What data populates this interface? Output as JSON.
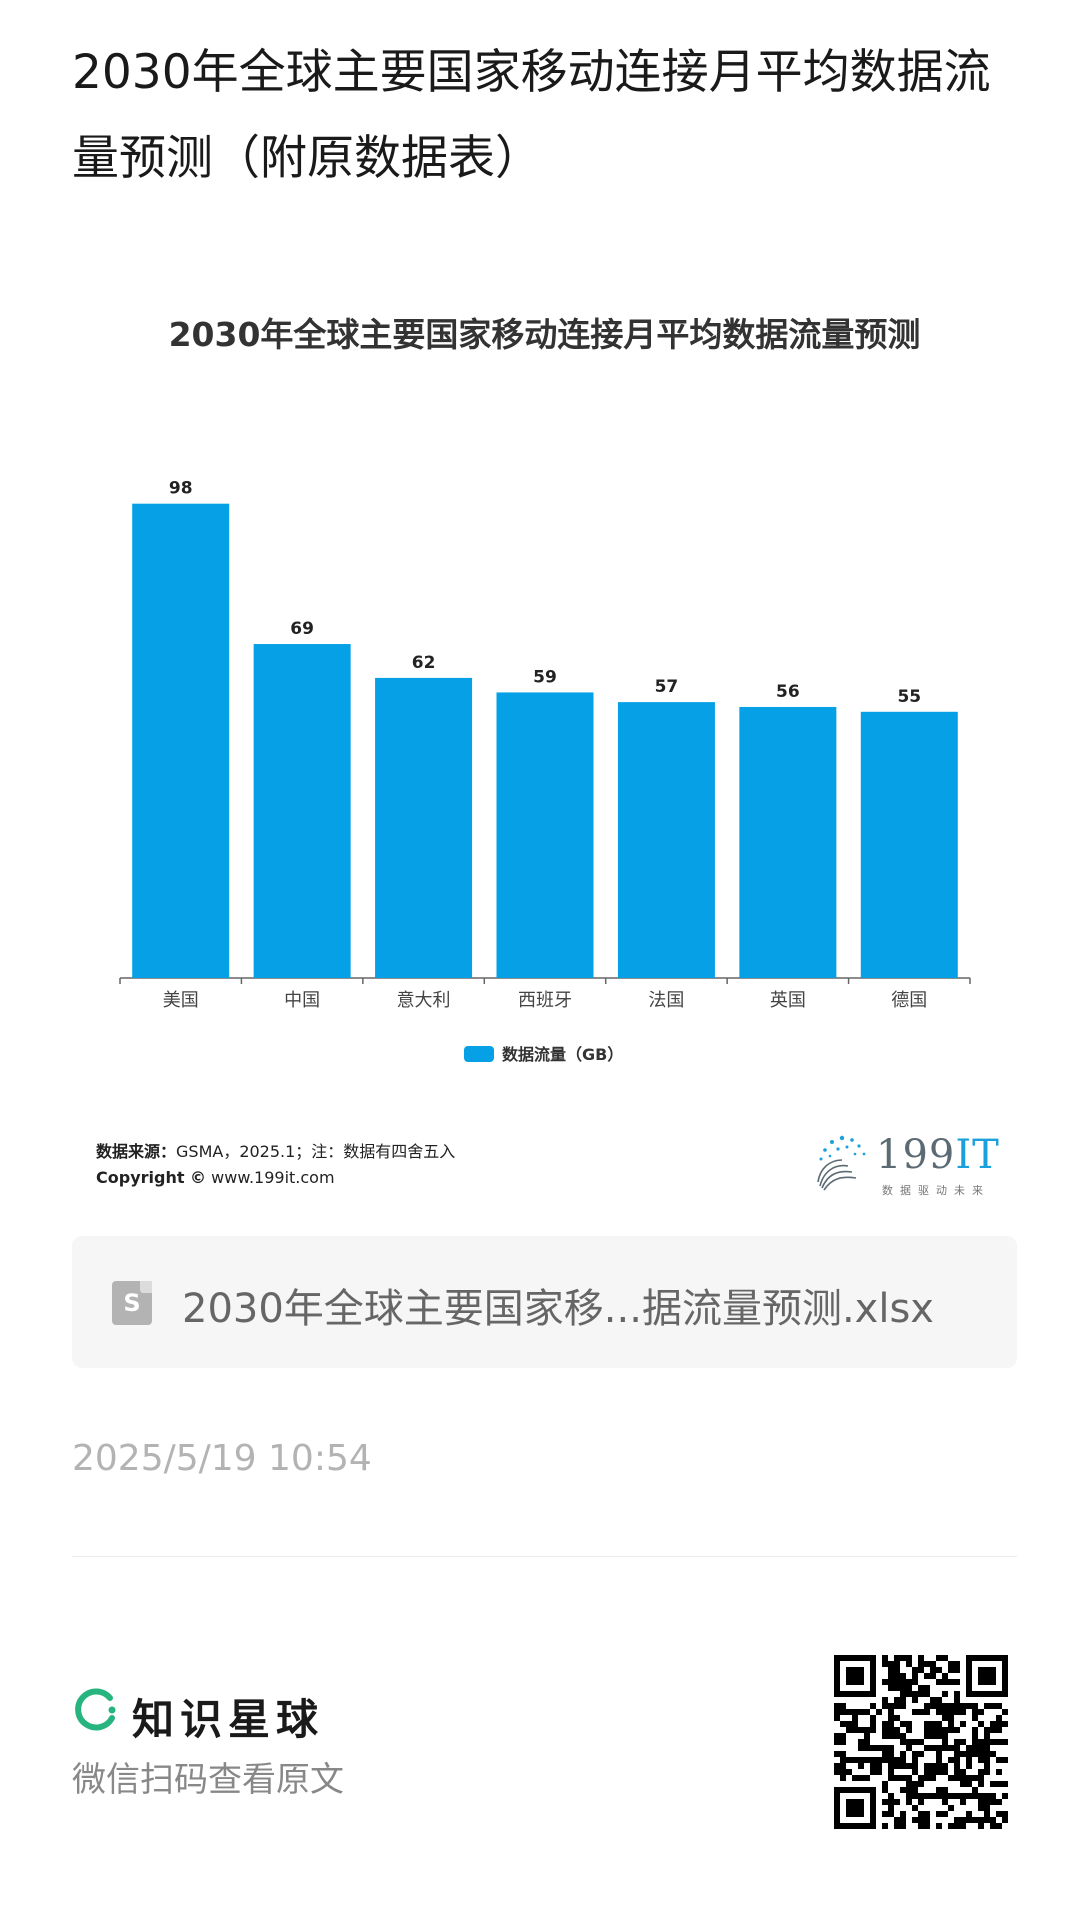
{
  "post": {
    "title": "2030年全球主要国家移动连接月平均数据流量预测（附原数据表）"
  },
  "chart_data": {
    "type": "bar",
    "title": "2030年全球主要国家移动连接月平均数据流量预测",
    "categories": [
      "美国",
      "中国",
      "意大利",
      "西班牙",
      "法国",
      "英国",
      "德国"
    ],
    "series": [
      {
        "name": "数据流量（GB）",
        "values": [
          98,
          69,
          62,
          59,
          57,
          56,
          55
        ]
      }
    ],
    "ylim": [
      0,
      100
    ],
    "grid": false,
    "legend": "bottom",
    "bar_color": "#05A0E5"
  },
  "footer": {
    "source_label": "数据来源：",
    "source_text": "GSMA，2025.1；注：数据有四舍五入",
    "copyright_label": "Copyright ©",
    "copyright_url": "www.199it.com",
    "logo_text": "199",
    "logo_text_accent": "IT",
    "logo_tagline": "数据驱动未来"
  },
  "attachment": {
    "icon": "spreadsheet-file-icon",
    "icon_letter": "S",
    "file_name": "2030年全球主要国家移...据流量预测.xlsx"
  },
  "timestamp": "2025/5/19 10:54",
  "brand": {
    "name": "知识星球",
    "icon": "planet-ring-icon",
    "accent": "#27B47F",
    "scan_tip": "微信扫码查看原文"
  },
  "qr": {
    "icon": "qr-code-icon"
  }
}
